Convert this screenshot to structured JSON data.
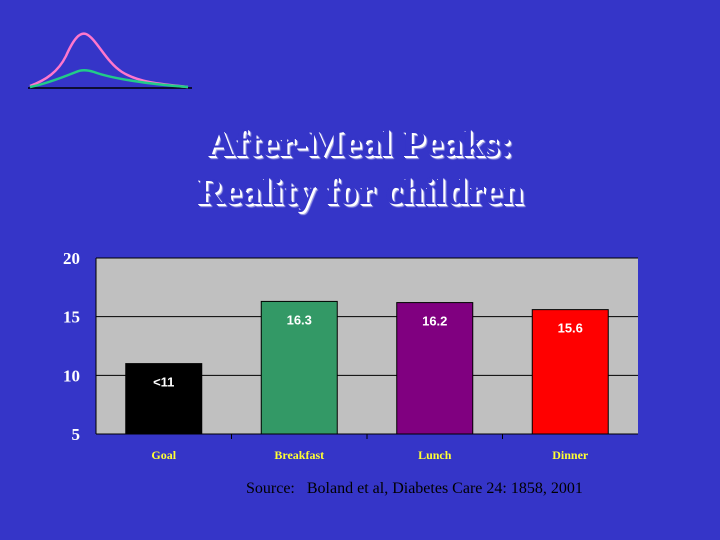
{
  "slide": {
    "title_line1": "After-Meal Peaks:",
    "title_line2": "Reality for children",
    "source_prefix": "Source:",
    "source_text": "Boland et al, Diabetes Care 24: 1858, 2001"
  },
  "colors": {
    "background": "#3535c8",
    "plot_background": "#c0c0c0",
    "tick_label": "#ffffff",
    "category_label": "#ffff33",
    "logo_pink": "#ff77cc",
    "logo_green": "#22cc88"
  },
  "logo": {
    "icon": "glucose-peak-curves-icon"
  },
  "chart_data": {
    "type": "bar",
    "categories": [
      "Goal",
      "Breakfast",
      "Lunch",
      "Dinner"
    ],
    "values": [
      11,
      16.3,
      16.2,
      15.6
    ],
    "data_labels": [
      "<11",
      "16.3",
      "16.2",
      "15.6"
    ],
    "bar_colors": [
      "#000000",
      "#339966",
      "#800080",
      "#ff0000"
    ],
    "ylim": [
      5,
      20
    ],
    "yticks": [
      5,
      10,
      15,
      20
    ],
    "grid": true,
    "legend": "none"
  }
}
